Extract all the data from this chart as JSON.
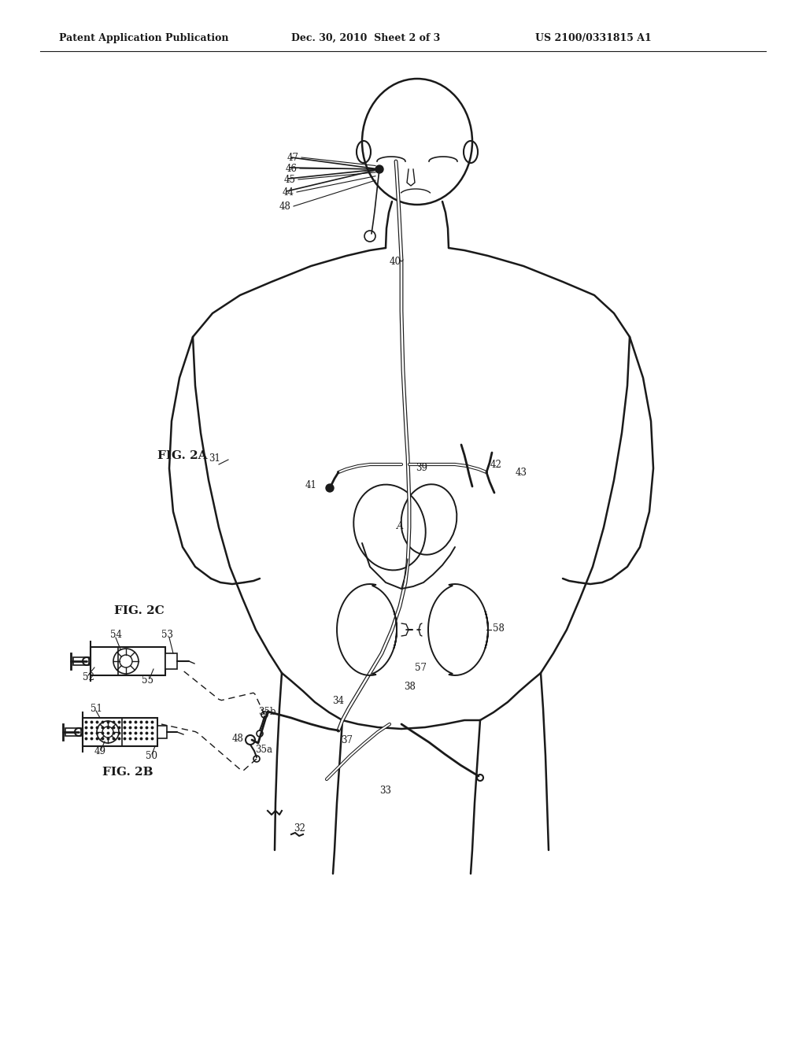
{
  "bg_color": "#ffffff",
  "line_color": "#1a1a1a",
  "header_left": "Patent Application Publication",
  "header_mid": "Dec. 30, 2010  Sheet 2 of 3",
  "header_right": "US 2100/0331815 A1",
  "fig2a_label": "FIG. 2A",
  "fig2b_label": "FIG. 2B",
  "fig2c_label": "FIG. 2C"
}
